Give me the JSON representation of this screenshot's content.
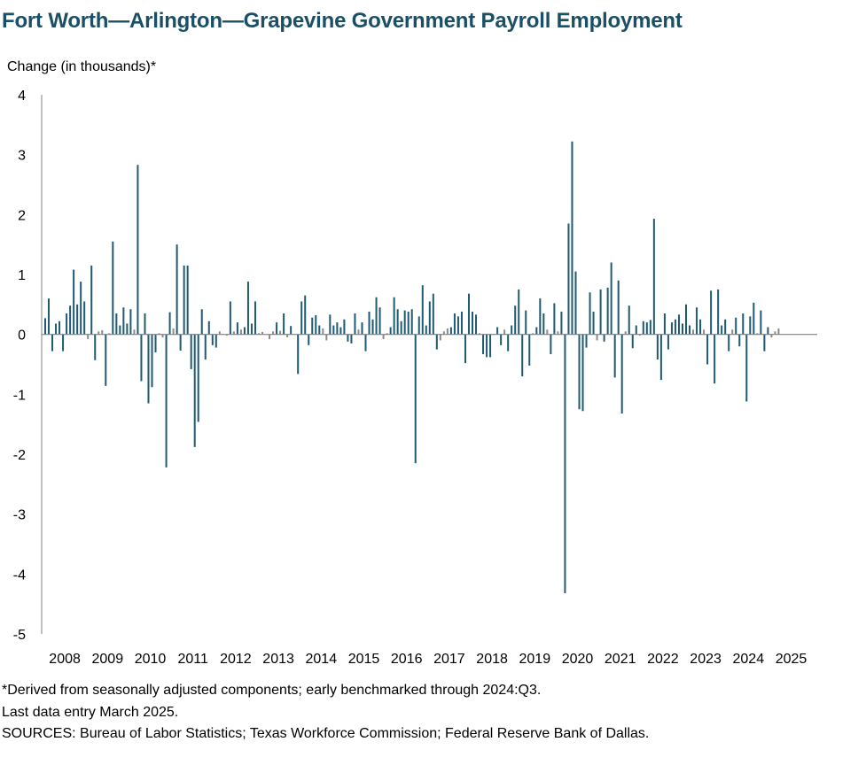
{
  "title": "Fort Worth—Arlington—Grapevine Government Payroll Employment",
  "notes": {
    "line1": "*Derived from seasonally adjusted components; early benchmarked through 2024:Q3.",
    "line2": "Last data entry March 2025.",
    "line3": "SOURCES: Bureau of Labor Statistics; Texas Workforce Commission; Federal Reserve Bank of Dallas."
  },
  "chart_data": {
    "type": "bar",
    "title": "Fort Worth—Arlington—Grapevine Government Payroll Employment",
    "ylabel": "Change (in thousands)*",
    "xlabel": "",
    "ylim": [
      -5,
      4
    ],
    "yticks": [
      4,
      3,
      2,
      1,
      0,
      -1,
      -2,
      -3,
      -4,
      -5
    ],
    "year_labels": [
      "2008",
      "2009",
      "2010",
      "2011",
      "2012",
      "2013",
      "2014",
      "2015",
      "2016",
      "2017",
      "2018",
      "2019",
      "2020",
      "2021",
      "2022",
      "2023",
      "2024",
      "2025"
    ],
    "bar_color": "#1f5a73",
    "x_start": "2008-01",
    "x_end": "2025-03",
    "values": [
      0.27,
      0.6,
      -0.28,
      0.18,
      0.22,
      -0.28,
      0.35,
      0.48,
      1.08,
      0.5,
      0.88,
      0.55,
      -0.08,
      1.15,
      -0.43,
      0.05,
      0.07,
      -0.86,
      0.02,
      1.55,
      0.35,
      0.15,
      0.45,
      0.18,
      0.42,
      0.08,
      2.83,
      -0.78,
      0.35,
      -1.15,
      -0.88,
      -0.3,
      0.02,
      -0.05,
      -2.22,
      0.37,
      0.1,
      1.5,
      -0.27,
      1.15,
      1.15,
      -0.58,
      -1.88,
      -1.46,
      0.42,
      -0.42,
      0.22,
      -0.18,
      -0.22,
      0.05,
      0.0,
      -0.02,
      0.55,
      0.05,
      0.2,
      0.08,
      0.12,
      0.88,
      0.18,
      0.55,
      0.02,
      0.04,
      0.0,
      -0.08,
      0.05,
      0.2,
      0.06,
      0.35,
      -0.05,
      0.14,
      0.0,
      -0.66,
      0.55,
      0.65,
      -0.18,
      0.28,
      0.32,
      0.15,
      0.1,
      -0.1,
      0.33,
      0.15,
      0.2,
      0.12,
      0.25,
      -0.12,
      -0.15,
      0.35,
      0.08,
      0.2,
      -0.28,
      0.38,
      0.25,
      0.62,
      0.45,
      -0.08,
      0.02,
      0.12,
      0.62,
      0.42,
      0.22,
      0.4,
      0.38,
      0.42,
      -2.15,
      0.3,
      0.82,
      0.15,
      0.55,
      0.68,
      -0.25,
      -0.1,
      0.05,
      0.1,
      0.12,
      0.35,
      0.3,
      0.38,
      -0.48,
      0.68,
      0.38,
      0.33,
      0.02,
      -0.33,
      -0.38,
      -0.38,
      0.0,
      0.12,
      -0.18,
      0.08,
      -0.28,
      0.15,
      0.48,
      0.75,
      -0.7,
      0.4,
      -0.52,
      0.02,
      0.12,
      0.6,
      0.35,
      0.08,
      -0.33,
      0.52,
      0.05,
      0.38,
      -4.32,
      1.85,
      3.22,
      1.05,
      -1.25,
      -1.28,
      -0.22,
      0.7,
      0.38,
      -0.1,
      0.75,
      -0.12,
      0.78,
      1.2,
      -0.72,
      0.9,
      -1.32,
      0.05,
      0.48,
      -0.23,
      0.15,
      -0.02,
      0.22,
      0.2,
      0.24,
      1.93,
      -0.42,
      -0.76,
      0.35,
      -0.25,
      0.2,
      0.25,
      0.33,
      0.18,
      0.5,
      0.15,
      0.08,
      0.45,
      0.25,
      0.08,
      -0.5,
      0.73,
      -0.82,
      0.75,
      0.15,
      0.25,
      -0.28,
      0.08,
      0.28,
      -0.2,
      0.35,
      -1.12,
      0.3,
      0.53,
      0.02,
      0.4,
      -0.28,
      0.12,
      -0.05,
      0.05,
      0.1
    ]
  }
}
